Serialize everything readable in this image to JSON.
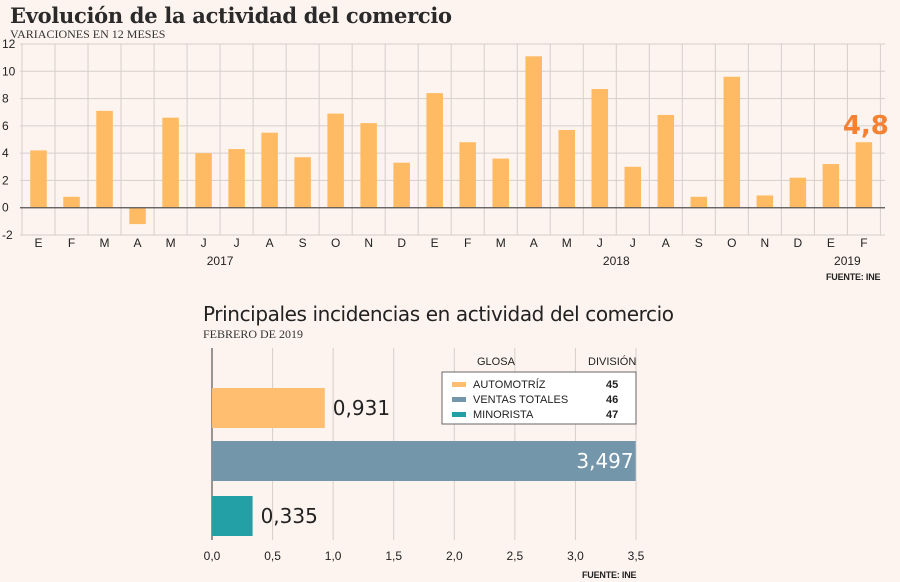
{
  "chart1": {
    "title": "Evolución de la actividad del comercio",
    "subtitle": "VARIACIONES EN 12 MESES",
    "source": "FUENTE: INE",
    "highlight_label": "4,8",
    "colors": {
      "bar": "#ffbb63",
      "highlight": "#f58233",
      "grid": "#d6ceca",
      "zero": "#555555"
    }
  },
  "chart2": {
    "title": "Principales incidencias en actividad del comercio",
    "subtitle": "FEBRERO DE 2019",
    "source": "FUENTE: INE",
    "legend_header_glosa": "GLOSA",
    "legend_header_division": "DIVISIÓN",
    "legend": [
      {
        "name": "AUTOMOTRÍZ",
        "division": "45",
        "color": "#ffbe70"
      },
      {
        "name": "VENTAS TOTALES",
        "division": "46",
        "color": "#7396aa"
      },
      {
        "name": "MINORISTA",
        "division": "47",
        "color": "#22a0a5"
      }
    ]
  },
  "chart_data": [
    {
      "type": "bar",
      "title": "Evolución de la actividad del comercio",
      "subtitle": "VARIACIONES EN 12 MESES",
      "categories": [
        "E",
        "F",
        "M",
        "A",
        "M",
        "J",
        "J",
        "A",
        "S",
        "O",
        "N",
        "D",
        "E",
        "F",
        "M",
        "A",
        "M",
        "J",
        "J",
        "A",
        "S",
        "O",
        "N",
        "D",
        "E",
        "F"
      ],
      "year_labels": [
        {
          "label": "2017",
          "start_index": 0
        },
        {
          "label": "2018",
          "start_index": 12
        },
        {
          "label": "2019",
          "start_index": 24
        }
      ],
      "values": [
        4.2,
        0.8,
        7.1,
        -1.2,
        6.6,
        4.0,
        4.3,
        5.5,
        3.7,
        6.9,
        6.2,
        3.3,
        8.4,
        4.8,
        3.6,
        11.1,
        5.7,
        8.7,
        3.0,
        6.8,
        0.8,
        9.6,
        0.9,
        2.2,
        3.2,
        4.8
      ],
      "highlight_index": 25,
      "yticks": [
        "-2",
        "0",
        "2",
        "4",
        "6",
        "8",
        "10",
        "12"
      ],
      "ylim": [
        -2,
        12
      ],
      "grid": true
    },
    {
      "type": "bar",
      "orientation": "horizontal",
      "title": "Principales incidencias en actividad del comercio",
      "subtitle": "FEBRERO DE 2019",
      "series": [
        {
          "name": "AUTOMOTRÍZ",
          "value": 0.931,
          "label": "0,931"
        },
        {
          "name": "VENTAS TOTALES",
          "value": 3.497,
          "label": "3,497"
        },
        {
          "name": "MINORISTA",
          "value": 0.335,
          "label": "0,335"
        }
      ],
      "xticks": [
        "0,0",
        "0,5",
        "1,0",
        "1,5",
        "2,0",
        "2,5",
        "3,0",
        "3,5"
      ],
      "xlim": [
        0,
        3.5
      ],
      "grid": true
    }
  ]
}
